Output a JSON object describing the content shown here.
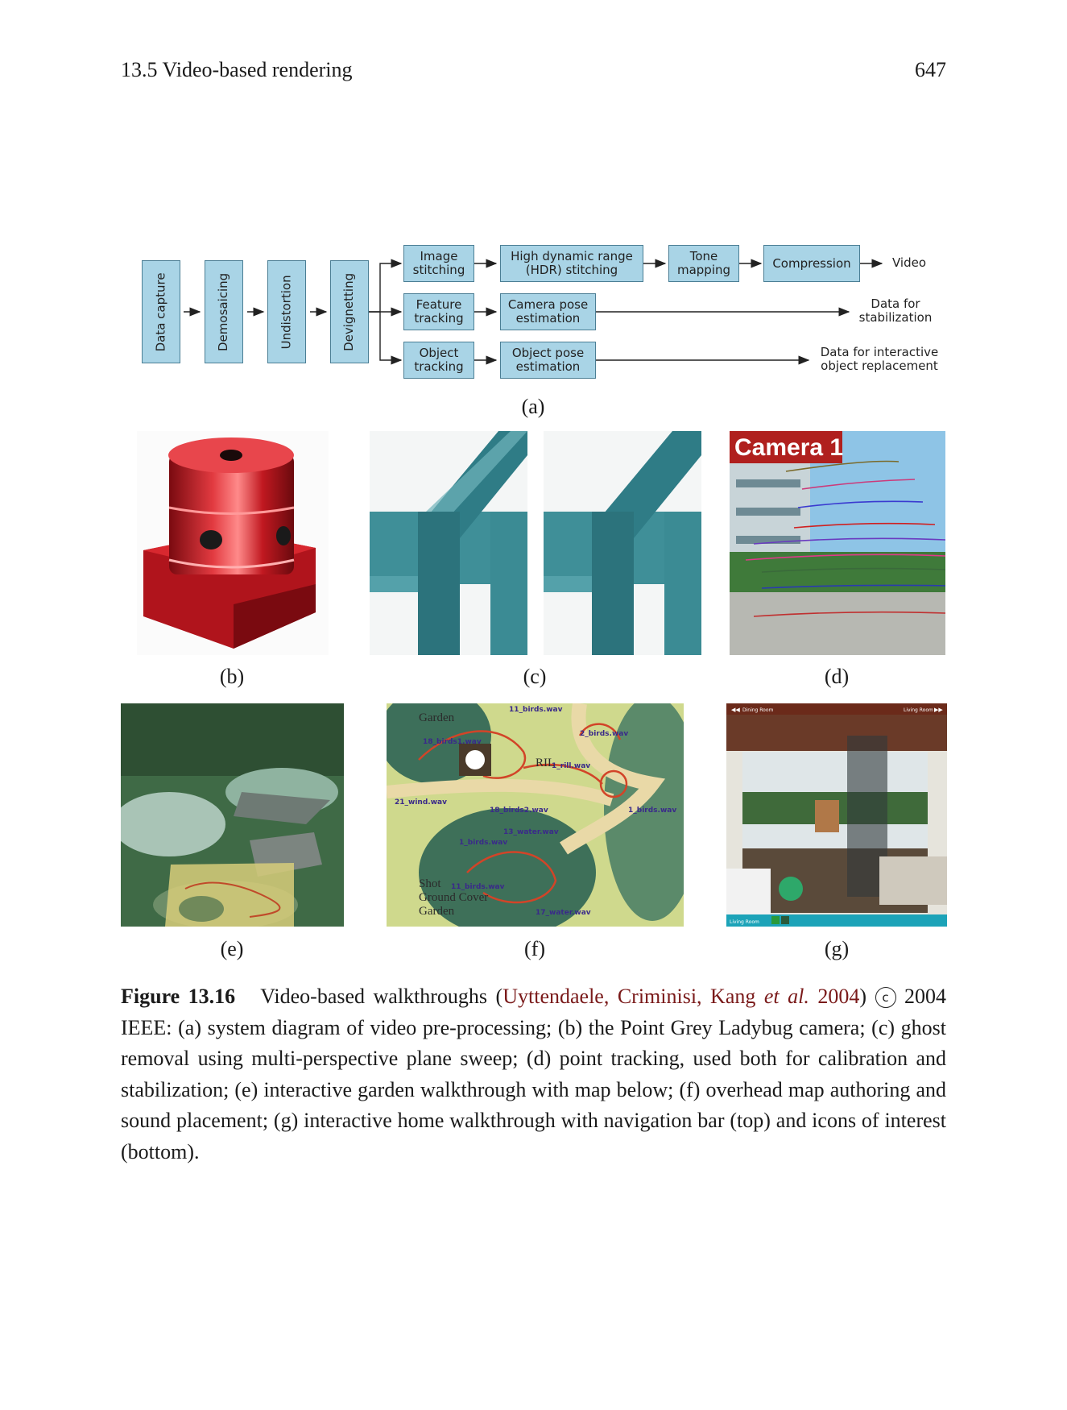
{
  "header": {
    "section": "13.5 Video-based rendering",
    "page": "647"
  },
  "diagram": {
    "vertical_boxes": [
      "Data capture",
      "Demosaicing",
      "Undistortion",
      "Devignetting"
    ],
    "row1": [
      "Image stitching",
      "High dynamic range (HDR) stitching",
      "Tone mapping",
      "Compression"
    ],
    "row1_out": "Video",
    "row2": [
      "Feature tracking",
      "Camera pose estimation"
    ],
    "row2_out": "Data for stabilization",
    "row3": [
      "Object tracking",
      "Object pose estimation"
    ],
    "row3_out": "Data for interactive object replacement"
  },
  "panel_labels": {
    "a": "(a)",
    "b": "(b)",
    "c": "(c)",
    "d": "(d)",
    "e": "(e)",
    "f": "(f)",
    "g": "(g)"
  },
  "photo_text": {
    "camera": "Camera 1",
    "map_labels": [
      "11_birds.wav",
      "18_birds1.wav",
      "2_birds.wav",
      "1_rill.wav",
      "21_wind.wav",
      "18_birds2.wav",
      "13_water.wav",
      "1_birds.wav",
      "1_birds.wav",
      "11_birds.wav",
      "17_water.wav"
    ],
    "map_places": [
      "Garden",
      "RIL",
      "Shot",
      "Ground Cover",
      "Garden"
    ],
    "home_nav_left": "Dining Room",
    "home_nav_right": "Living Room",
    "home_bottom": "Living Room"
  },
  "caption": {
    "label": "Figure 13.16",
    "lead": "Video-based walkthroughs (",
    "cite_authors": "Uyttendaele, Criminisi, Kang ",
    "cite_etal": "et al.",
    "cite_year": " 2004",
    "after_cite": ") ",
    "copyright_symbol": "c",
    "body": " 2004 IEEE: (a) system diagram of video pre-processing; (b) the Point Grey Ladybug camera; (c) ghost removal using multi-perspective plane sweep; (d) point tracking, used both for calibration and stabilization; (e) interactive garden walkthrough with map below; (f) overhead map authoring and sound placement; (g) interactive home walkthrough with navigation bar (top) and icons of interest (bottom)."
  }
}
